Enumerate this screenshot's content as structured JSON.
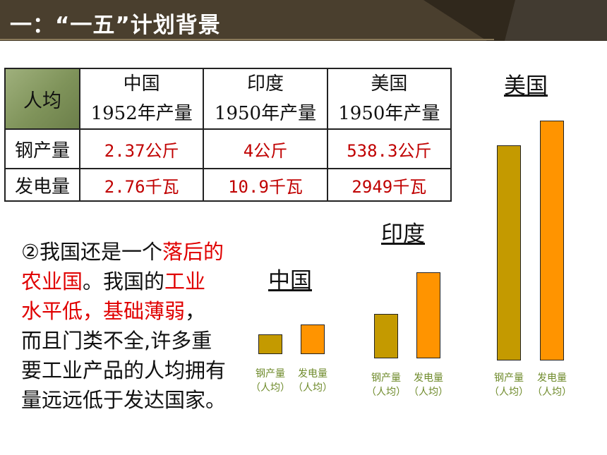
{
  "header": {
    "title": "一：“一五”计划背景",
    "colors": {
      "banner": "#4a3f2e",
      "banner_dark": "#2e261b"
    }
  },
  "table": {
    "corner": "人均",
    "columns": [
      {
        "country": "中国",
        "year": "1952年产量"
      },
      {
        "country": "印度",
        "year": "1950年产量"
      },
      {
        "country": "美国",
        "year": "1950年产量"
      }
    ],
    "rows": [
      {
        "label": "钢产量",
        "values": [
          "2.37公斤",
          "4公斤",
          "538.3公斤"
        ]
      },
      {
        "label": "发电量",
        "values": [
          "2.76千瓦",
          "10.9千瓦",
          "2949千瓦"
        ]
      }
    ]
  },
  "paragraph": {
    "segments": [
      {
        "text": "②我国还是一个",
        "highlight": false
      },
      {
        "text": "落后的农业国",
        "highlight": true
      },
      {
        "text": "。我国的",
        "highlight": false
      },
      {
        "text": "工业水平低，基础薄弱",
        "highlight": true
      },
      {
        "text": "，而且门类不全,许多重要工业产品的人均拥有量远远低于发达国家。",
        "highlight": false
      }
    ]
  },
  "chart_data": {
    "type": "bar",
    "groups": [
      {
        "name": "中国",
        "steel_level": 0.08,
        "power_level": 0.12
      },
      {
        "name": "印度",
        "steel_level": 0.18,
        "power_level": 0.35
      },
      {
        "name": "美国",
        "steel_level": 0.87,
        "power_level": 0.97
      }
    ],
    "bar_labels": {
      "steel": [
        "钢产量",
        "（人均）"
      ],
      "power": [
        "发电量",
        "（人均）"
      ]
    },
    "colors": {
      "steel": "#c49a00",
      "power": "#ff9400",
      "label": "#6e8a2a"
    }
  }
}
